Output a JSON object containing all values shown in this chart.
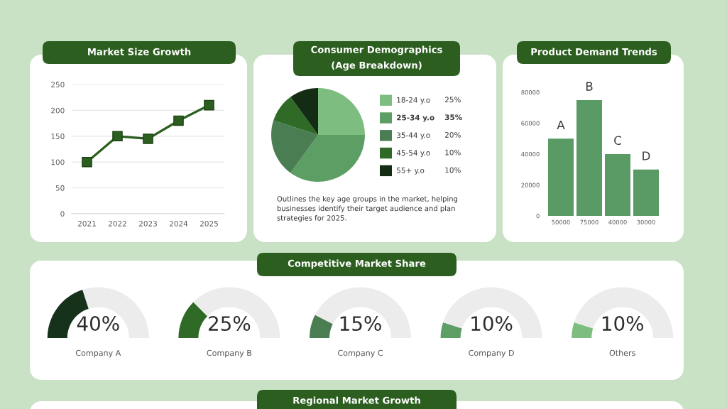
{
  "chart_data": [
    {
      "type": "line",
      "title": "Market Size Growth",
      "categories": [
        "2021",
        "2022",
        "2023",
        "2024",
        "2025"
      ],
      "values": [
        100,
        150,
        145,
        180,
        210
      ],
      "color": "#2b5e1f",
      "ylim": [
        0,
        250
      ],
      "yticks": [
        0,
        50,
        100,
        150,
        200,
        250
      ],
      "grid": "y",
      "marker": "square",
      "line_style": "solid"
    },
    {
      "type": "pie",
      "title": "Consumer Demographics",
      "subtitle": "(Age Breakdown)",
      "categories": [
        "18-24 y.o",
        "25-34 y.o",
        "35-44 y.o",
        "45-54 y.o",
        "55+ y.o"
      ],
      "values": [
        25,
        35,
        20,
        10,
        10
      ],
      "value_labels": [
        "25%",
        "35%",
        "20%",
        "10%",
        "10%"
      ],
      "colors": [
        "#7dbd7f",
        "#5c9e64",
        "#4a7d52",
        "#2f6a27",
        "#142b14"
      ],
      "legend": "right",
      "annotations": [
        "Outlines the key age groups in the market, helping\nbusinesses identify their target audience and plan\nstrategies for 2025."
      ]
    },
    {
      "type": "bar",
      "title": "Product Demand Trends",
      "categories": [
        "50000",
        "75000",
        "40000",
        "30000"
      ],
      "values": [
        50000,
        75000,
        40000,
        30000
      ],
      "color": "#5a9a64",
      "ylim": [
        0,
        80000
      ],
      "yticks": [
        0,
        20000,
        40000,
        60000,
        80000
      ],
      "annotations": [
        {
          "text": "A",
          "x": "50000",
          "y": 50000
        },
        {
          "text": "B",
          "x": "75000",
          "y": 75000
        },
        {
          "text": "C",
          "x": "40000",
          "y": 40000
        },
        {
          "text": "D",
          "x": "30000",
          "y": 30000
        }
      ]
    },
    {
      "type": "other",
      "title": "Competitive Market Share",
      "categories": [
        "Company A",
        "Company B",
        "Company C",
        "Company D",
        "Others"
      ],
      "values": [
        40,
        25,
        15,
        10,
        10
      ],
      "value_labels": [
        "40%",
        "25%",
        "15%",
        "10%",
        "10%"
      ],
      "colors": [
        "#17321a",
        "#2f6a27",
        "#4a7d52",
        "#5c9e64",
        "#7dbd7f"
      ]
    },
    {
      "type": "other",
      "title": "Regional Market Growth"
    }
  ]
}
